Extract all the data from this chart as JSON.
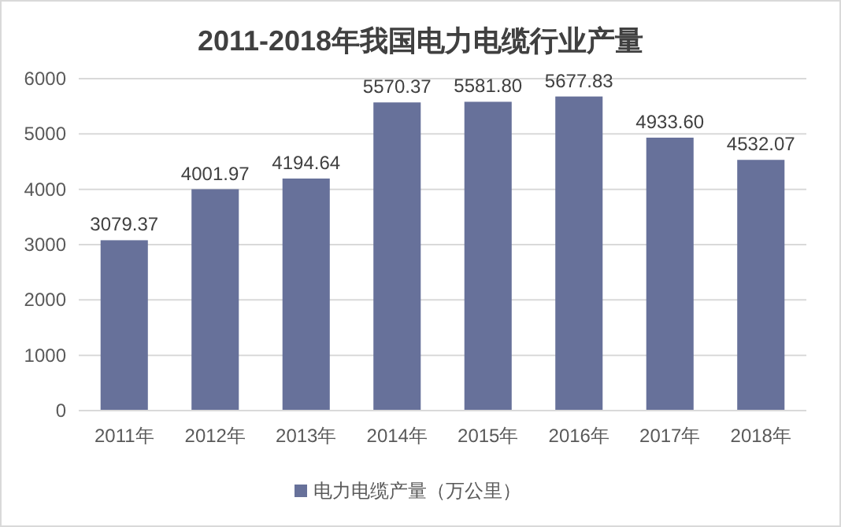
{
  "chart_data": {
    "type": "bar",
    "title": "2011-2018年我国电力电缆行业产量",
    "categories": [
      "2011年",
      "2012年",
      "2013年",
      "2014年",
      "2015年",
      "2016年",
      "2017年",
      "2018年"
    ],
    "series": [
      {
        "name": "电力电缆产量（万公里）",
        "color": "#67719a",
        "values": [
          3079.37,
          4001.97,
          4194.64,
          5570.37,
          5581.8,
          5677.83,
          4933.6,
          4532.07
        ],
        "value_labels": [
          "3079.37",
          "4001.97",
          "4194.64",
          "5570.37",
          "5581.80",
          "5677.83",
          "4933.60",
          "4532.07"
        ]
      }
    ],
    "ylim": [
      0,
      6000
    ],
    "yticks": [
      0,
      1000,
      2000,
      3000,
      4000,
      5000,
      6000
    ],
    "grid": "y",
    "legend": "bottom"
  }
}
